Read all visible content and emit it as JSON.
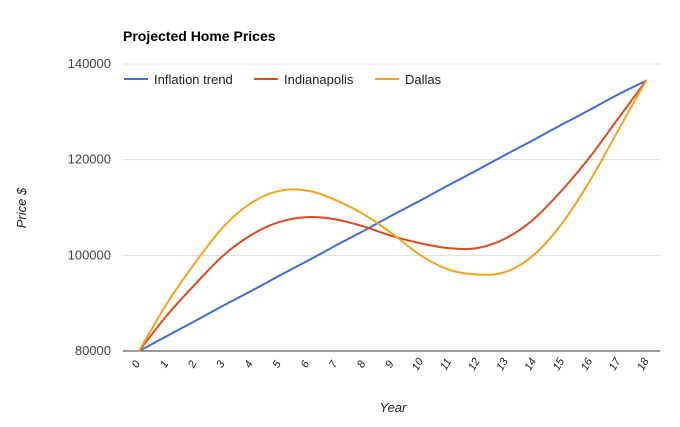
{
  "chart_data": {
    "type": "line",
    "title": "Projected Home Prices",
    "xlabel": "Year",
    "ylabel": "Price $",
    "x": [
      0,
      1,
      2,
      3,
      4,
      5,
      6,
      7,
      8,
      9,
      10,
      11,
      12,
      13,
      14,
      15,
      16,
      17,
      18
    ],
    "xlim": [
      0,
      18
    ],
    "ylim": [
      80000,
      140000
    ],
    "yticks": [
      80000,
      100000,
      120000,
      140000
    ],
    "grid": true,
    "legend": "top-left",
    "series": [
      {
        "name": "Inflation trend",
        "color": "#3b6fd6",
        "values": [
          80000,
          83150,
          86300,
          89500,
          92600,
          95800,
          98900,
          102100,
          105200,
          108400,
          111500,
          114700,
          117800,
          121000,
          124100,
          127300,
          130400,
          133600,
          136500
        ]
      },
      {
        "name": "Indianapolis",
        "color": "#de4a1f",
        "values": [
          80000,
          87500,
          94000,
          100000,
          104300,
          107000,
          108000,
          107500,
          106000,
          104000,
          102500,
          101500,
          101500,
          103500,
          107500,
          113500,
          120500,
          128500,
          136500
        ]
      },
      {
        "name": "Dallas",
        "color": "#f5a31a",
        "values": [
          80000,
          90000,
          98500,
          106000,
          111000,
          113500,
          113500,
          111500,
          108500,
          104500,
          100000,
          97000,
          96000,
          96500,
          100000,
          106500,
          115500,
          126000,
          136500
        ]
      }
    ]
  }
}
